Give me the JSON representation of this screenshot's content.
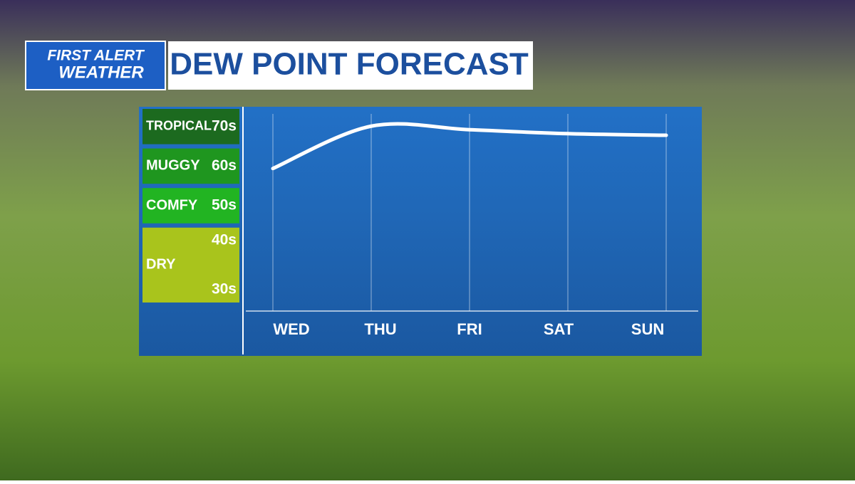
{
  "header": {
    "logo_line1": "FIRST ALERT",
    "logo_line2": "WEATHER"
  },
  "chart_data": {
    "type": "line",
    "title": "DEW POINT FORECAST",
    "categories": [
      "WED",
      "THU",
      "FRI",
      "SAT",
      "SUN"
    ],
    "series": [
      {
        "color": "#ffffff",
        "values": [
          64.4,
          75.1,
          74.2,
          73.2,
          72.8
        ]
      }
    ],
    "ylim": [
      30,
      80
    ],
    "bands": [
      {
        "name": "TROPICAL",
        "labels": [
          "70s"
        ],
        "range": [
          70,
          80
        ],
        "color": "#1c6a1f"
      },
      {
        "name": "MUGGY",
        "labels": [
          "60s"
        ],
        "range": [
          60,
          70
        ],
        "color": "#1f961f"
      },
      {
        "name": "COMFY",
        "labels": [
          "50s"
        ],
        "range": [
          50,
          60
        ],
        "color": "#22b422"
      },
      {
        "name": "DRY",
        "labels": [
          "40s",
          "30s"
        ],
        "range": [
          30,
          50
        ],
        "color": "#a9c41c"
      }
    ]
  }
}
